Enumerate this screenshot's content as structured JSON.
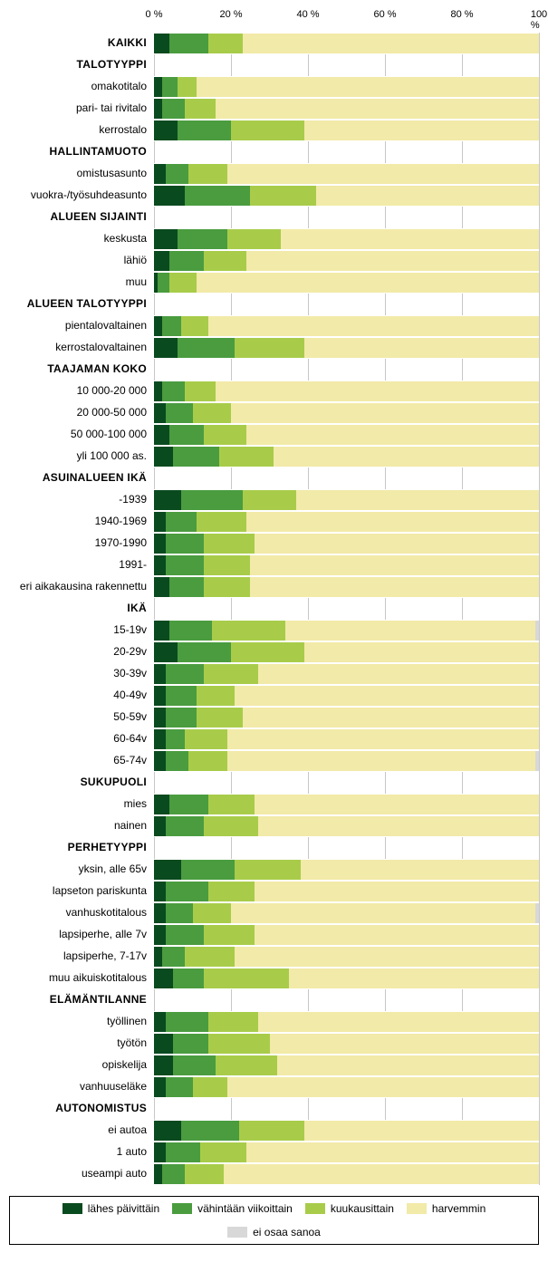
{
  "axis": {
    "ticks": [
      0,
      20,
      40,
      60,
      80,
      100
    ],
    "suffix": " %",
    "grid_color": "#c7c7c7"
  },
  "colors": {
    "s1": "#0a4a1f",
    "s2": "#4a9c3f",
    "s3": "#a8cc4a",
    "s4": "#f2eaa8",
    "s5": "#d8d8d8",
    "background": "#ffffff",
    "text": "#000000"
  },
  "legend": [
    {
      "key": "s1",
      "label": "lähes päivittäin"
    },
    {
      "key": "s2",
      "label": "vähintään viikoittain"
    },
    {
      "key": "s3",
      "label": "kuukausittain"
    },
    {
      "key": "s4",
      "label": "harvemmin"
    },
    {
      "key": "s5",
      "label": "ei osaa sanoa"
    }
  ],
  "rows": [
    {
      "label": "KAIKKI",
      "type": "data",
      "bold": true,
      "values": [
        4,
        10,
        9,
        77,
        0
      ]
    },
    {
      "label": "TALOTYYPPI",
      "type": "header"
    },
    {
      "label": "omakotitalo",
      "type": "data",
      "values": [
        2,
        4,
        5,
        89,
        0
      ]
    },
    {
      "label": "pari- tai rivitalo",
      "type": "data",
      "values": [
        2,
        6,
        8,
        84,
        0
      ]
    },
    {
      "label": "kerrostalo",
      "type": "data",
      "values": [
        6,
        14,
        19,
        61,
        0
      ]
    },
    {
      "label": "HALLINTAMUOTO",
      "type": "header"
    },
    {
      "label": "omistusasunto",
      "type": "data",
      "values": [
        3,
        6,
        10,
        81,
        0
      ]
    },
    {
      "label": "vuokra-/työsuhdeasunto",
      "type": "data",
      "values": [
        8,
        17,
        17,
        58,
        0
      ]
    },
    {
      "label": "ALUEEN SIJAINTI",
      "type": "header"
    },
    {
      "label": "keskusta",
      "type": "data",
      "values": [
        6,
        13,
        14,
        67,
        0
      ]
    },
    {
      "label": "lähiö",
      "type": "data",
      "values": [
        4,
        9,
        11,
        76,
        0
      ]
    },
    {
      "label": "muu",
      "type": "data",
      "values": [
        1,
        3,
        7,
        89,
        0
      ]
    },
    {
      "label": "ALUEEN TALOTYYPPI",
      "type": "header"
    },
    {
      "label": "pientalovaltainen",
      "type": "data",
      "values": [
        2,
        5,
        7,
        86,
        0
      ]
    },
    {
      "label": "kerrostalovaltainen",
      "type": "data",
      "values": [
        6,
        15,
        18,
        61,
        0
      ]
    },
    {
      "label": "TAAJAMAN KOKO",
      "type": "header"
    },
    {
      "label": "10 000-20 000",
      "type": "data",
      "values": [
        2,
        6,
        8,
        84,
        0
      ]
    },
    {
      "label": "20 000-50 000",
      "type": "data",
      "values": [
        3,
        7,
        10,
        80,
        0
      ]
    },
    {
      "label": "50 000-100 000",
      "type": "data",
      "values": [
        4,
        9,
        11,
        76,
        0
      ]
    },
    {
      "label": "yli 100 000 as.",
      "type": "data",
      "values": [
        5,
        12,
        14,
        69,
        0
      ]
    },
    {
      "label": "ASUINALUEEN IKÄ",
      "type": "header"
    },
    {
      "label": "-1939",
      "type": "data",
      "values": [
        7,
        16,
        14,
        63,
        0
      ]
    },
    {
      "label": "1940-1969",
      "type": "data",
      "values": [
        3,
        8,
        13,
        76,
        0
      ]
    },
    {
      "label": "1970-1990",
      "type": "data",
      "values": [
        3,
        10,
        13,
        74,
        0
      ]
    },
    {
      "label": "1991-",
      "type": "data",
      "values": [
        3,
        10,
        12,
        75,
        0
      ]
    },
    {
      "label": "eri aikakausina rakennettu",
      "type": "data",
      "values": [
        4,
        9,
        12,
        75,
        0
      ]
    },
    {
      "label": "IKÄ",
      "type": "header"
    },
    {
      "label": "15-19v",
      "type": "data",
      "values": [
        4,
        11,
        19,
        65,
        1
      ]
    },
    {
      "label": "20-29v",
      "type": "data",
      "values": [
        6,
        14,
        19,
        61,
        0
      ]
    },
    {
      "label": "30-39v",
      "type": "data",
      "values": [
        3,
        10,
        14,
        73,
        0
      ]
    },
    {
      "label": "40-49v",
      "type": "data",
      "values": [
        3,
        8,
        10,
        79,
        0
      ]
    },
    {
      "label": "50-59v",
      "type": "data",
      "values": [
        3,
        8,
        12,
        77,
        0
      ]
    },
    {
      "label": "60-64v",
      "type": "data",
      "values": [
        3,
        5,
        11,
        81,
        0
      ]
    },
    {
      "label": "65-74v",
      "type": "data",
      "values": [
        3,
        6,
        10,
        80,
        1
      ]
    },
    {
      "label": "SUKUPUOLI",
      "type": "header"
    },
    {
      "label": "mies",
      "type": "data",
      "values": [
        4,
        10,
        12,
        74,
        0
      ]
    },
    {
      "label": "nainen",
      "type": "data",
      "values": [
        3,
        10,
        14,
        73,
        0
      ]
    },
    {
      "label": "PERHETYYPPI",
      "type": "header"
    },
    {
      "label": "yksin, alle 65v",
      "type": "data",
      "values": [
        7,
        14,
        17,
        62,
        0
      ]
    },
    {
      "label": "lapseton pariskunta",
      "type": "data",
      "values": [
        3,
        11,
        12,
        74,
        0
      ]
    },
    {
      "label": "vanhuskotitalous",
      "type": "data",
      "values": [
        3,
        7,
        10,
        79,
        1
      ]
    },
    {
      "label": "lapsiperhe, alle 7v",
      "type": "data",
      "values": [
        3,
        10,
        13,
        74,
        0
      ]
    },
    {
      "label": "lapsiperhe, 7-17v",
      "type": "data",
      "values": [
        2,
        6,
        13,
        79,
        0
      ]
    },
    {
      "label": "muu aikuiskotitalous",
      "type": "data",
      "values": [
        5,
        8,
        22,
        65,
        0
      ]
    },
    {
      "label": "ELÄMÄNTILANNE",
      "type": "header"
    },
    {
      "label": "työllinen",
      "type": "data",
      "values": [
        3,
        11,
        13,
        73,
        0
      ]
    },
    {
      "label": "työtön",
      "type": "data",
      "values": [
        5,
        9,
        16,
        70,
        0
      ]
    },
    {
      "label": "opiskelija",
      "type": "data",
      "values": [
        5,
        11,
        16,
        68,
        0
      ]
    },
    {
      "label": "vanhuuseläke",
      "type": "data",
      "values": [
        3,
        7,
        9,
        81,
        0
      ]
    },
    {
      "label": "AUTONOMISTUS",
      "type": "header"
    },
    {
      "label": "ei autoa",
      "type": "data",
      "values": [
        7,
        15,
        17,
        61,
        0
      ]
    },
    {
      "label": "1 auto",
      "type": "data",
      "values": [
        3,
        9,
        12,
        76,
        0
      ]
    },
    {
      "label": "useampi auto",
      "type": "data",
      "values": [
        2,
        6,
        10,
        82,
        0
      ]
    }
  ]
}
